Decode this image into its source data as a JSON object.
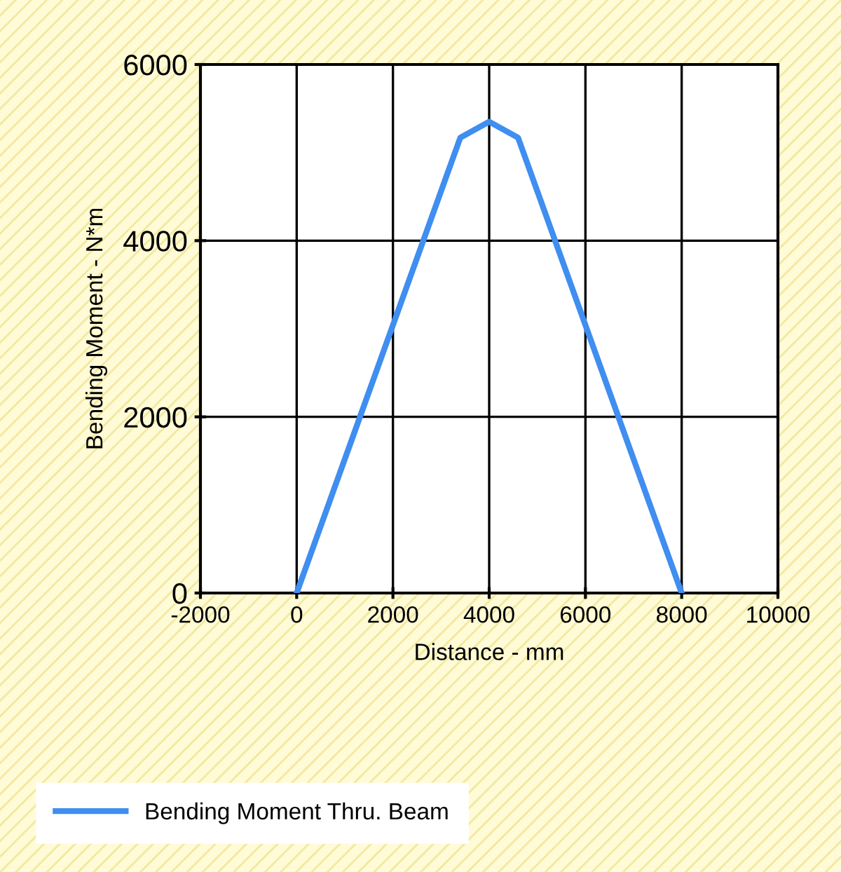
{
  "chart_data": {
    "type": "line",
    "xlabel": "Distance - mm",
    "ylabel": "Bending Moment - N*m",
    "x": [
      0,
      3400,
      4000,
      4600,
      8000
    ],
    "series": [
      {
        "name": "Bending Moment Thru. Beam",
        "color": "#3f8ef0",
        "values": [
          0,
          5170,
          5350,
          5170,
          0
        ]
      }
    ],
    "xlim": [
      -2000,
      10000
    ],
    "xticks": [
      -2000,
      0,
      2000,
      4000,
      6000,
      8000,
      10000
    ],
    "ylim": [
      0,
      6000
    ],
    "yticks": [
      0,
      2000,
      4000,
      6000
    ],
    "grid": true,
    "legend": "bottom",
    "marker": "none",
    "line_style": "solid"
  }
}
